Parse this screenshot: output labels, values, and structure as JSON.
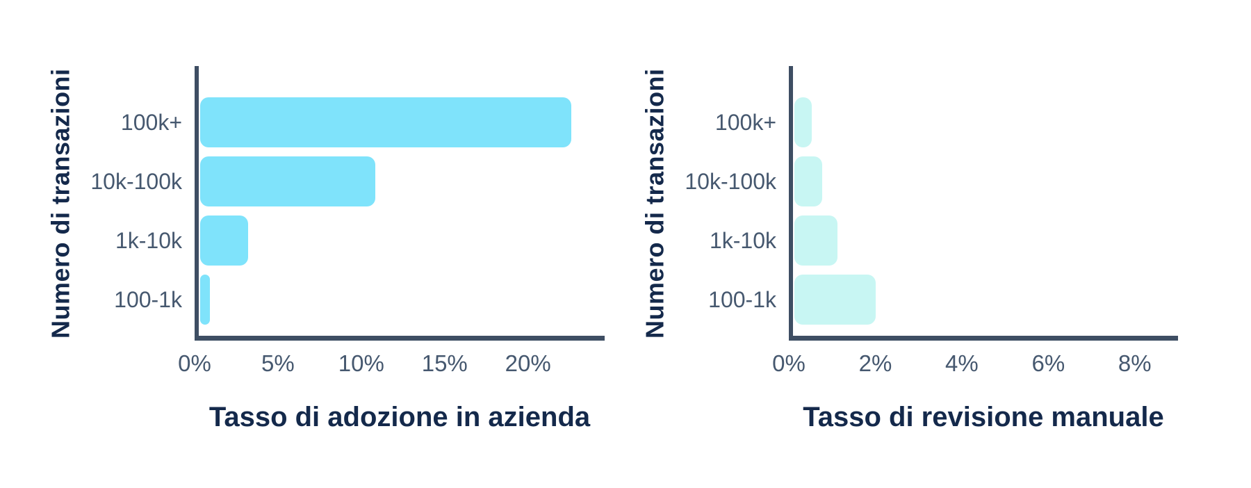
{
  "page": {
    "background": "#FFFFFF"
  },
  "colors": {
    "axis": "#3E4E63",
    "tick_text": "#46586F",
    "title_text": "#14294B",
    "adoption_bar": "#7FE3FB",
    "review_bar": "#C8F6F3"
  },
  "chart_data": [
    {
      "type": "bar",
      "orientation": "horizontal",
      "title": "Tasso di adozione in azienda",
      "ylabel": "Numero di transazioni",
      "xlabel": "",
      "unit": "%",
      "categories": [
        "100k+",
        "10k-100k",
        "1k-10k",
        "100-1k"
      ],
      "values": [
        22.5,
        10.6,
        2.9,
        0.6
      ],
      "xlim": [
        0,
        24.6
      ],
      "xticks": [
        {
          "value": 0,
          "label": "0%"
        },
        {
          "value": 5,
          "label": "5%"
        },
        {
          "value": 10,
          "label": "10%"
        },
        {
          "value": 15,
          "label": "15%"
        },
        {
          "value": 20,
          "label": "20%"
        }
      ],
      "grid": false,
      "legend": null,
      "bar_color": "#7FE3FB"
    },
    {
      "type": "bar",
      "orientation": "horizontal",
      "title": "Tasso di revisione manuale",
      "ylabel": "Numero di transazioni",
      "xlabel": "",
      "unit": "%",
      "categories": [
        "100k+",
        "10k-100k",
        "1k-10k",
        "100-1k"
      ],
      "values": [
        0.4,
        0.65,
        1.0,
        1.9
      ],
      "xlim": [
        0,
        9.0
      ],
      "xticks": [
        {
          "value": 0,
          "label": "0%"
        },
        {
          "value": 2,
          "label": "2%"
        },
        {
          "value": 4,
          "label": "4%"
        },
        {
          "value": 6,
          "label": "6%"
        },
        {
          "value": 8,
          "label": "8%"
        }
      ],
      "grid": false,
      "legend": null,
      "bar_color": "#C8F6F3"
    }
  ]
}
